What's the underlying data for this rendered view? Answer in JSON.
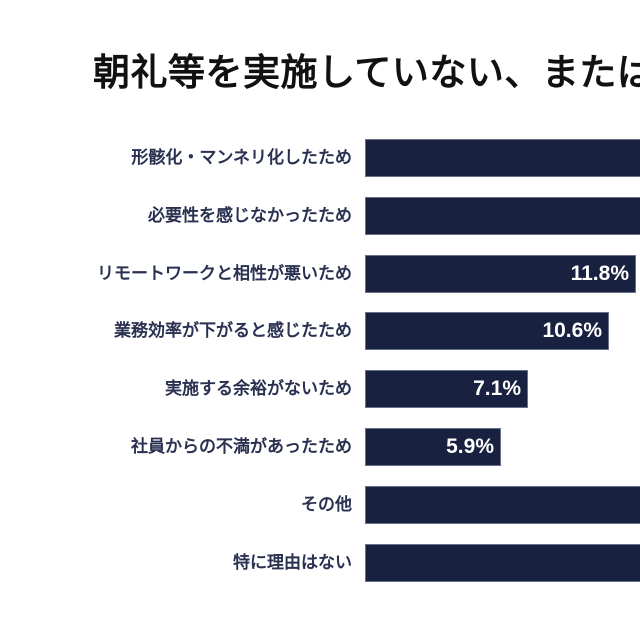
{
  "title": {
    "text": "朝礼等を実施していない、または"
  },
  "colors": {
    "background": "#ffffff",
    "title": "#111111",
    "bar": "#18213f",
    "bar_border": "#aab4c8",
    "category_label": "#2a3150",
    "value_label": "#ffffff"
  },
  "chart_data": {
    "type": "bar",
    "orientation": "horizontal",
    "title": "朝礼等を実施していない、または",
    "categories": [
      "形骸化・マンネリ化したため",
      "必要性を感じなかったため",
      "リモートワークと相性が悪いため",
      "業務効率が下がると感じたため",
      "実施する余裕がないため",
      "社員からの不満があったため",
      "その他",
      "特に理由はない"
    ],
    "values": [
      null,
      null,
      11.8,
      10.6,
      7.1,
      5.9,
      null,
      null
    ],
    "value_labels": [
      "",
      "",
      "11.8%",
      "10.6%",
      "7.1%",
      "5.9%",
      "",
      ""
    ],
    "bars_cut_off_at_right_edge": [
      true,
      true,
      false,
      false,
      false,
      false,
      true,
      true
    ],
    "xlim": [
      0,
      12
    ],
    "grid": false,
    "legend": false,
    "value_labels_position": "inside-right"
  }
}
